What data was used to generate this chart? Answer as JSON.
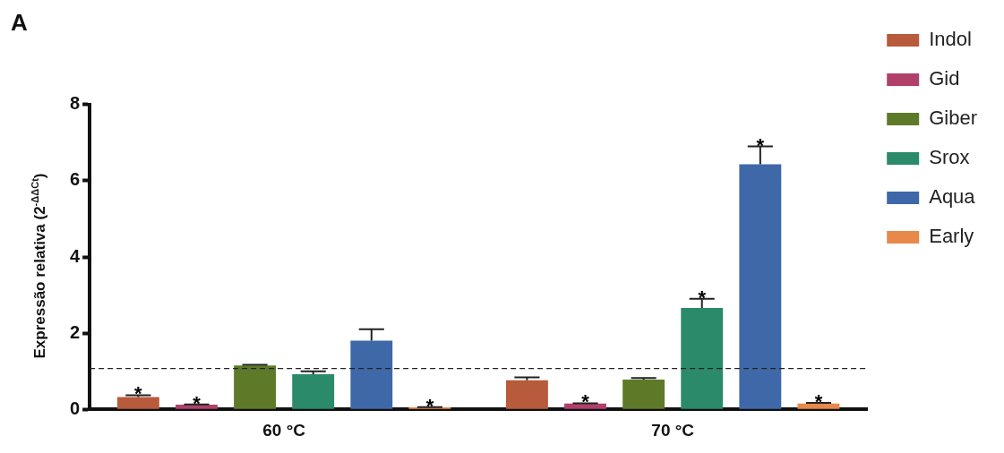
{
  "chart_data": {
    "type": "bar",
    "categories": [
      "60 °C",
      "70 °C"
    ],
    "ylabel": "Expressão relativa (2$^{-ΔΔCt}$)",
    "ylim": [
      0,
      8
    ],
    "yticks": [
      0,
      2,
      4,
      6,
      8
    ],
    "grid": false,
    "legend": "top right",
    "series": [
      {
        "name": "Indol",
        "color": "#b85a3c",
        "values": [
          0.32,
          0.76
        ],
        "errors": [
          0.05,
          0.08
        ],
        "value_labels": [
          "*",
          null
        ]
      },
      {
        "name": "Gid",
        "color": "#b0406a",
        "values": [
          0.12,
          0.15
        ],
        "errors": [
          0.01,
          0.01
        ],
        "value_labels": [
          "*",
          "*"
        ]
      },
      {
        "name": "Giber",
        "color": "#5e7a28",
        "values": [
          1.15,
          0.78
        ],
        "errors": [
          0.02,
          0.04
        ],
        "value_labels": [
          null,
          null
        ]
      },
      {
        "name": "Srox",
        "color": "#2a8a6a",
        "values": [
          0.92,
          2.66
        ],
        "errors": [
          0.08,
          0.24
        ],
        "value_labels": [
          null,
          "*"
        ]
      },
      {
        "name": "Aqua",
        "color": "#3e68a8",
        "values": [
          1.8,
          6.43
        ],
        "errors": [
          0.3,
          0.47
        ],
        "value_labels": [
          null,
          "*"
        ]
      },
      {
        "name": "Early",
        "color": "#e8884a",
        "values": [
          0.05,
          0.15
        ],
        "errors": [
          0.01,
          0.02
        ],
        "value_labels": [
          "*",
          "*"
        ]
      }
    ],
    "ref_lines": [
      {
        "axis": "y",
        "value": 1.07,
        "line_style": "dashed"
      }
    ],
    "annotations": [
      "A"
    ]
  }
}
